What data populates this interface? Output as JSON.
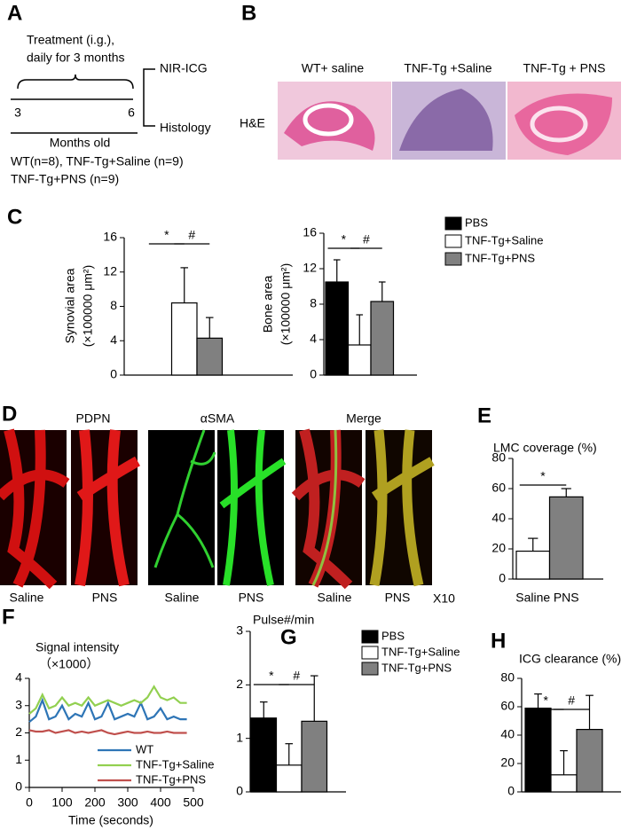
{
  "letters": [
    "A",
    "B",
    "C",
    "D",
    "E",
    "F",
    "G",
    "H"
  ],
  "panel_a": {
    "treatment": [
      "Treatment (i.g.),",
      "daily for 3 months"
    ],
    "start": "3",
    "end": "6",
    "outcomes": [
      "NIR-ICG",
      "Histology"
    ],
    "axis_label": "Months old",
    "groups": [
      "WT(n=8), TNF-Tg+Saline (n=9)",
      "TNF-Tg+PNS (n=9)"
    ]
  },
  "panel_b": {
    "columns": [
      "WT+ saline",
      "TNF-Tg +Saline",
      "TNF-Tg +  PNS"
    ],
    "row_label": "H&E"
  },
  "panel_d": {
    "columns": [
      "PDPN",
      "αSMA",
      "Merge"
    ],
    "conditions": [
      "Saline",
      "PNS",
      "Saline",
      "PNS",
      "Saline",
      "PNS"
    ],
    "magnification": "X10"
  },
  "chart_data": [
    {
      "type": "bar",
      "ylabel": [
        "Synovial area",
        "(×100000  μm²)"
      ],
      "values": [
        null,
        8.4,
        4.3
      ],
      "errors": [
        null,
        4.1,
        2.4
      ],
      "colors": [
        "#000000",
        "#ffffff",
        "#808080"
      ],
      "ylim": [
        0,
        16
      ],
      "yticks": [
        0,
        4,
        8,
        12,
        16
      ],
      "significance": [
        "*",
        "#"
      ]
    },
    {
      "type": "bar",
      "ylabel": [
        "Bone area",
        "(×100000  μm²)"
      ],
      "series": [
        {
          "name": "PBS",
          "color": "#000000",
          "values": [
            10.5
          ],
          "errors": [
            2.5
          ]
        },
        {
          "name": "TNF-Tg+Saline",
          "color": "#ffffff",
          "values": [
            3.4
          ],
          "errors": [
            3.4
          ]
        },
        {
          "name": "TNF-Tg+PNS",
          "color": "#808080",
          "values": [
            8.3
          ],
          "errors": [
            2.2
          ]
        }
      ],
      "ylim": [
        0,
        16
      ],
      "yticks": [
        0,
        4,
        8,
        12,
        16
      ],
      "significance": [
        "*",
        "#"
      ],
      "legend": "right"
    },
    {
      "type": "bar",
      "title": "LMC coverage (%)",
      "categories": [
        "Saline",
        "PNS"
      ],
      "values": [
        18.5,
        54.5
      ],
      "errors": [
        8.5,
        5.5
      ],
      "colors": [
        "#ffffff",
        "#808080"
      ],
      "ylim": [
        0,
        80
      ],
      "yticks": [
        0,
        20,
        40,
        60,
        80
      ],
      "significance": [
        "*"
      ]
    },
    {
      "type": "line",
      "title": "Signal intensity",
      "subtitle": "（×1000）",
      "xlabel": "Time (seconds)",
      "x": [
        0,
        20,
        40,
        60,
        80,
        100,
        120,
        140,
        160,
        180,
        200,
        220,
        240,
        260,
        280,
        300,
        320,
        340,
        360,
        380,
        400,
        420,
        440,
        460,
        480
      ],
      "series": [
        {
          "name": "WT",
          "color": "#2e75b6",
          "values": [
            2.4,
            2.6,
            3.2,
            2.5,
            2.6,
            3.0,
            2.5,
            2.7,
            2.6,
            3.1,
            2.5,
            2.6,
            3.1,
            2.5,
            2.6,
            2.7,
            2.6,
            3.1,
            2.5,
            2.6,
            2.9,
            2.5,
            2.6,
            2.5,
            2.5
          ]
        },
        {
          "name": "TNF-Tg+Saline",
          "color": "#92d050",
          "values": [
            2.7,
            2.9,
            3.4,
            2.9,
            3.0,
            3.3,
            3.0,
            3.1,
            3.0,
            3.3,
            3.0,
            3.1,
            3.2,
            3.1,
            3.0,
            3.1,
            3.2,
            3.1,
            3.3,
            3.7,
            3.3,
            3.2,
            3.3,
            3.1,
            3.1
          ]
        },
        {
          "name": "TNF-Tg+PNS",
          "color": "#c0504d",
          "values": [
            2.1,
            2.05,
            2.05,
            2.1,
            2.0,
            2.05,
            2.1,
            2.0,
            2.05,
            2.0,
            2.05,
            2.1,
            2.0,
            1.95,
            2.0,
            2.05,
            2.0,
            2.0,
            2.05,
            2.0,
            2.0,
            2.05,
            2.0,
            2.0,
            2.0
          ]
        }
      ],
      "xlim": [
        0,
        500
      ],
      "xticks": [
        0,
        100,
        200,
        300,
        400,
        500
      ],
      "ylim": [
        0,
        4
      ],
      "yticks": [
        0,
        1,
        2,
        3,
        4
      ],
      "legend": "lower right"
    },
    {
      "type": "bar",
      "title": "Pulse#/min",
      "series": [
        {
          "name": "PBS",
          "color": "#000000",
          "values": [
            1.38
          ],
          "errors": [
            0.3
          ]
        },
        {
          "name": "TNF-Tg+Saline",
          "color": "#ffffff",
          "values": [
            0.5
          ],
          "errors": [
            0.4
          ]
        },
        {
          "name": "TNF-Tg+PNS",
          "color": "#808080",
          "values": [
            1.32
          ],
          "errors": [
            0.85
          ]
        }
      ],
      "ylim": [
        0,
        3
      ],
      "yticks": [
        0,
        1,
        2,
        3
      ],
      "significance": [
        "*",
        "#"
      ],
      "legend": "right"
    },
    {
      "type": "bar",
      "title": "ICG clearance (%)",
      "values": [
        59,
        12,
        44
      ],
      "errors": [
        10,
        17,
        24
      ],
      "colors": [
        "#000000",
        "#ffffff",
        "#808080"
      ],
      "ylim": [
        0,
        80
      ],
      "yticks": [
        0,
        20,
        40,
        60,
        80
      ],
      "significance": [
        "*",
        "#"
      ]
    }
  ]
}
